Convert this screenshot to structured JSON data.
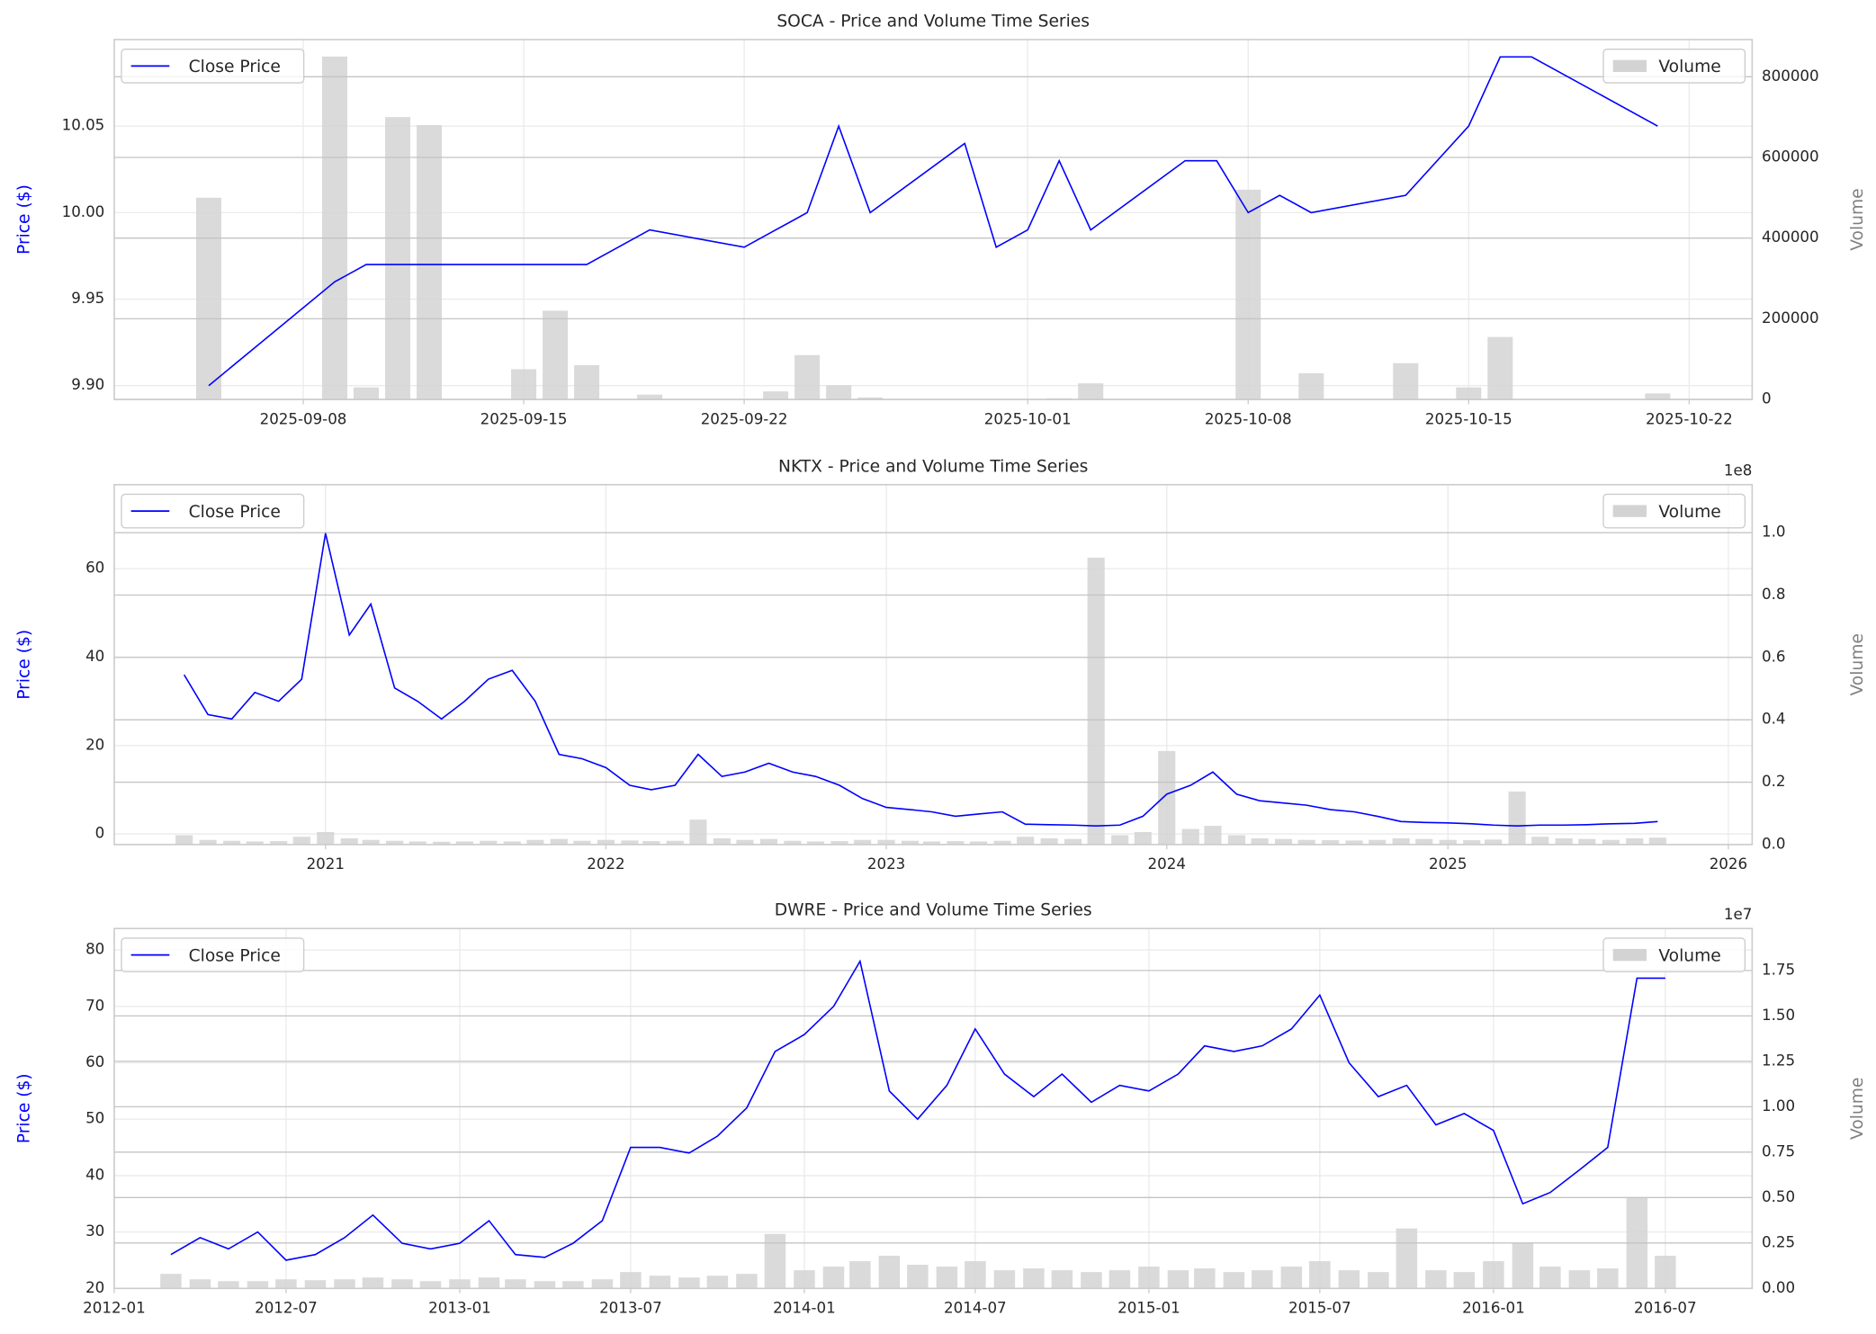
{
  "chart_data": [
    {
      "type": "line",
      "title": "SOCA - Price and Volume Time Series",
      "ylabel": "Price ($)",
      "y2label": "Volume",
      "x": [
        "2025-09-05",
        "2025-09-09",
        "2025-09-10",
        "2025-09-11",
        "2025-09-12",
        "2025-09-15",
        "2025-09-16",
        "2025-09-17",
        "2025-09-19",
        "2025-09-22",
        "2025-09-23",
        "2025-09-24",
        "2025-09-25",
        "2025-09-26",
        "2025-09-29",
        "2025-09-30",
        "2025-10-01",
        "2025-10-02",
        "2025-10-03",
        "2025-10-06",
        "2025-10-07",
        "2025-10-08",
        "2025-10-09",
        "2025-10-10",
        "2025-10-13",
        "2025-10-15",
        "2025-10-16",
        "2025-10-17",
        "2025-10-21"
      ],
      "series": [
        {
          "name": "Close Price",
          "color": "#0000ff",
          "values": [
            9.9,
            9.96,
            9.97,
            9.97,
            9.97,
            9.97,
            9.97,
            9.97,
            9.99,
            9.98,
            9.99,
            10.0,
            10.05,
            10.0,
            10.04,
            9.98,
            9.99,
            10.03,
            9.99,
            10.03,
            10.03,
            10.0,
            10.01,
            10.0,
            10.01,
            10.05,
            10.09,
            10.09,
            10.05
          ]
        },
        {
          "name": "Volume",
          "type": "bar",
          "axis": "y2",
          "color": "#d3d3d3",
          "values": [
            500000,
            850000,
            30000,
            700000,
            680000,
            75000,
            220000,
            85000,
            12000,
            0,
            20000,
            110000,
            35000,
            5000,
            0,
            0,
            0,
            3000,
            40000,
            0,
            0,
            520000,
            0,
            65000,
            90000,
            30000,
            155000,
            0,
            15000
          ]
        }
      ],
      "xlim": [
        "2025-09-02",
        "2025-10-24"
      ],
      "xticks": [
        "2025-09-08",
        "2025-09-15",
        "2025-09-22",
        "2025-10-01",
        "2025-10-08",
        "2025-10-15",
        "2025-10-22"
      ],
      "ylim": [
        9.892,
        10.1
      ],
      "yticks": [
        {
          "value": 9.9,
          "label": "9.90"
        },
        9.95,
        {
          "value": 10,
          "label": "10.00"
        },
        10.05
      ],
      "y2lim": [
        0,
        892000
      ],
      "y2ticks": [
        0,
        200000,
        400000,
        600000,
        800000
      ],
      "grid": true,
      "legend": "upper left",
      "y2_legend": "upper right"
    },
    {
      "type": "line",
      "title": "NKTX - Price and Volume Time Series",
      "ylabel": "Price ($)",
      "y2label": "Volume",
      "y2_offset_text": "1e8",
      "x": [
        "2020-07",
        "2020-08",
        "2020-09",
        "2020-10",
        "2020-11",
        "2020-12",
        "2021-01",
        "2021-02",
        "2021-03",
        "2021-04",
        "2021-05",
        "2021-06",
        "2021-07",
        "2021-08",
        "2021-09",
        "2021-10",
        "2021-11",
        "2021-12",
        "2022-01",
        "2022-02",
        "2022-03",
        "2022-04",
        "2022-05",
        "2022-06",
        "2022-07",
        "2022-08",
        "2022-09",
        "2022-10",
        "2022-11",
        "2022-12",
        "2023-01",
        "2023-02",
        "2023-03",
        "2023-04",
        "2023-05",
        "2023-06",
        "2023-07",
        "2023-08",
        "2023-09",
        "2023-10",
        "2023-11",
        "2023-12",
        "2024-01",
        "2024-02",
        "2024-03",
        "2024-04",
        "2024-05",
        "2024-06",
        "2024-07",
        "2024-08",
        "2024-09",
        "2024-10",
        "2024-11",
        "2024-12",
        "2025-01",
        "2025-02",
        "2025-03",
        "2025-04",
        "2025-05",
        "2025-06",
        "2025-07",
        "2025-08",
        "2025-09",
        "2025-10"
      ],
      "series": [
        {
          "name": "Close Price",
          "color": "#0000ff",
          "values": [
            36,
            27,
            26,
            32,
            30,
            35,
            68,
            45,
            52,
            33,
            30,
            26,
            30,
            35,
            37,
            30,
            18,
            17,
            15,
            11,
            10,
            11,
            18,
            13,
            14,
            16,
            14,
            13,
            11,
            8,
            6,
            5.5,
            5,
            4,
            4.5,
            5,
            2.2,
            2.1,
            2,
            1.8,
            2,
            4,
            9,
            11,
            14,
            9,
            7.5,
            7,
            6.5,
            5.5,
            5,
            4,
            2.8,
            2.6,
            2.5,
            2.3,
            2,
            1.8,
            2,
            2,
            2.1,
            2.3,
            2.4,
            2.8
          ]
        },
        {
          "name": "Volume",
          "type": "bar",
          "axis": "y2",
          "color": "#d3d3d3",
          "values": [
            3000000,
            1500000,
            1200000,
            1000000,
            1100000,
            2500000,
            4000000,
            2000000,
            1500000,
            1200000,
            1000000,
            900000,
            1000000,
            1200000,
            1000000,
            1500000,
            1800000,
            1200000,
            1500000,
            1300000,
            1100000,
            1200000,
            8000000,
            2000000,
            1500000,
            1800000,
            1200000,
            1000000,
            1100000,
            1500000,
            1500000,
            1200000,
            1000000,
            1100000,
            1000000,
            1200000,
            2500000,
            2000000,
            1800000,
            92000000,
            3000000,
            4000000,
            30000000,
            5000000,
            6000000,
            3000000,
            2000000,
            1800000,
            1500000,
            1400000,
            1300000,
            1500000,
            2000000,
            1800000,
            1500000,
            1400000,
            1600000,
            17000000,
            2500000,
            2000000,
            1800000,
            1500000,
            2000000,
            2200000
          ]
        }
      ],
      "xlim": [
        "2020-04",
        "2026-02"
      ],
      "xticks": [
        "2021",
        "2022",
        "2023",
        "2024",
        "2025",
        "2026"
      ],
      "ylim": [
        -2.4,
        79
      ],
      "yticks": [
        0,
        20,
        40,
        60
      ],
      "y2lim": [
        0,
        115400000
      ],
      "y2ticks": [
        {
          "value": 0,
          "label": "0.0"
        },
        {
          "value": 20000000,
          "label": "0.2"
        },
        {
          "value": 40000000,
          "label": "0.4"
        },
        {
          "value": 60000000,
          "label": "0.6"
        },
        {
          "value": 80000000,
          "label": "0.8"
        },
        {
          "value": 100000000,
          "label": "1.0"
        }
      ],
      "grid": true,
      "legend": "upper left",
      "y2_legend": "upper right"
    },
    {
      "type": "line",
      "title": "DWRE - Price and Volume Time Series",
      "ylabel": "Price ($)",
      "y2label": "Volume",
      "y2_offset_text": "1e7",
      "x": [
        "2012-03",
        "2012-04",
        "2012-05",
        "2012-06",
        "2012-07",
        "2012-08",
        "2012-09",
        "2012-10",
        "2012-11",
        "2012-12",
        "2013-01",
        "2013-02",
        "2013-03",
        "2013-04",
        "2013-05",
        "2013-06",
        "2013-07",
        "2013-08",
        "2013-09",
        "2013-10",
        "2013-11",
        "2013-12",
        "2014-01",
        "2014-02",
        "2014-03",
        "2014-04",
        "2014-05",
        "2014-06",
        "2014-07",
        "2014-08",
        "2014-09",
        "2014-10",
        "2014-11",
        "2014-12",
        "2015-01",
        "2015-02",
        "2015-03",
        "2015-04",
        "2015-05",
        "2015-06",
        "2015-07",
        "2015-08",
        "2015-09",
        "2015-10",
        "2015-11",
        "2015-12",
        "2016-01",
        "2016-02",
        "2016-03",
        "2016-04",
        "2016-05",
        "2016-06",
        "2016-07"
      ],
      "series": [
        {
          "name": "Close Price",
          "color": "#0000ff",
          "values": [
            26,
            29,
            27,
            30,
            25,
            26,
            29,
            33,
            28,
            27,
            28,
            32,
            26,
            25.5,
            28,
            32,
            45,
            45,
            44,
            47,
            52,
            62,
            65,
            70,
            78,
            55,
            50,
            56,
            66,
            58,
            54,
            58,
            53,
            56,
            55,
            58,
            63,
            62,
            63,
            66,
            72,
            60,
            54,
            56,
            49,
            51,
            48,
            35,
            37,
            41,
            45,
            75,
            75
          ]
        },
        {
          "name": "Volume",
          "type": "bar",
          "axis": "y2",
          "color": "#d3d3d3",
          "values": [
            800000,
            500000,
            400000,
            400000,
            500000,
            450000,
            500000,
            600000,
            500000,
            400000,
            500000,
            600000,
            500000,
            400000,
            400000,
            500000,
            900000,
            700000,
            600000,
            700000,
            800000,
            3000000,
            1000000,
            1200000,
            1500000,
            1800000,
            1300000,
            1200000,
            1500000,
            1000000,
            1100000,
            1000000,
            900000,
            1000000,
            1200000,
            1000000,
            1100000,
            900000,
            1000000,
            1200000,
            1500000,
            1000000,
            900000,
            3300000,
            1000000,
            900000,
            1500000,
            2500000,
            1200000,
            1000000,
            1100000,
            5000000,
            1800000
          ]
        }
      ],
      "xlim": [
        "2012-01",
        "2016-10"
      ],
      "xticks": [
        "2012-01",
        "2012-07",
        "2013-01",
        "2013-07",
        "2014-01",
        "2014-07",
        "2015-01",
        "2015-07",
        "2016-01",
        "2016-07"
      ],
      "ylim": [
        20,
        83.8
      ],
      "yticks": [
        20,
        30,
        40,
        50,
        60,
        70,
        80
      ],
      "y2lim": [
        0,
        19810000
      ],
      "y2ticks": [
        {
          "value": 0,
          "label": "0.00"
        },
        {
          "value": 2500000,
          "label": "0.25"
        },
        {
          "value": 5000000,
          "label": "0.50"
        },
        {
          "value": 7500000,
          "label": "0.75"
        },
        {
          "value": 10000000,
          "label": "1.00"
        },
        {
          "value": 12500000,
          "label": "1.25"
        },
        {
          "value": 15000000,
          "label": "1.50"
        },
        {
          "value": 17500000,
          "label": "1.75"
        }
      ],
      "grid": true,
      "legend": "upper left",
      "y2_legend": "upper right"
    }
  ]
}
